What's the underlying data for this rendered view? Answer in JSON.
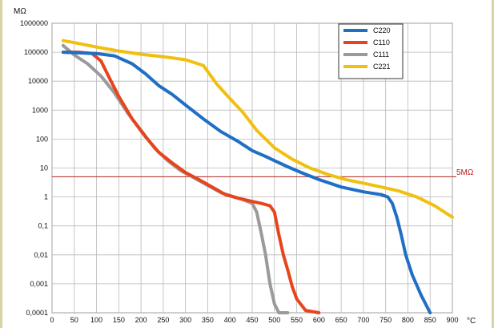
{
  "chart_data": {
    "type": "line",
    "y_unit": "MΩ",
    "x_unit": "°C",
    "y_scale": "log",
    "ylim": [
      0.0001,
      1000000
    ],
    "xlim": [
      0,
      900
    ],
    "grid": true,
    "legend_position": "top-right",
    "x_ticks": [
      "0",
      "50",
      "100",
      "150",
      "200",
      "250",
      "300",
      "350",
      "400",
      "450",
      "500",
      "550",
      "600",
      "650",
      "700",
      "750",
      "800",
      "850",
      "900"
    ],
    "y_ticks": [
      "1000000",
      "100000",
      "10000",
      "1000",
      "100",
      "10",
      "1",
      "0,1",
      "0,01",
      "0,001",
      "0,0001"
    ],
    "reference_line": {
      "value": 5,
      "label": "5MΩ",
      "color": "#b22222"
    },
    "series": [
      {
        "name": "C220",
        "color": "#1f6fc5",
        "x": [
          25,
          60,
          100,
          140,
          180,
          210,
          240,
          270,
          300,
          340,
          380,
          420,
          450,
          480,
          500,
          530,
          560,
          600,
          650,
          700,
          740,
          755,
          765,
          775,
          785,
          795,
          810,
          830,
          850
        ],
        "y": [
          100000,
          95000,
          90000,
          75000,
          40000,
          18000,
          7000,
          3500,
          1500,
          500,
          180,
          80,
          40,
          25,
          18,
          11,
          7,
          4,
          2.2,
          1.5,
          1.2,
          1,
          0.6,
          0.2,
          0.05,
          0.01,
          0.002,
          0.0004,
          0.0001
        ]
      },
      {
        "name": "C110",
        "color": "#e8441c",
        "x": [
          25,
          60,
          90,
          110,
          130,
          150,
          180,
          210,
          240,
          270,
          300,
          330,
          360,
          390,
          420,
          450,
          470,
          490,
          500,
          510,
          520,
          530,
          540,
          550,
          570,
          600
        ],
        "y": [
          100000,
          100000,
          90000,
          50000,
          12000,
          3000,
          500,
          120,
          35,
          15,
          7,
          4,
          2.2,
          1.2,
          0.9,
          0.7,
          0.6,
          0.5,
          0.3,
          0.05,
          0.01,
          0.003,
          0.0008,
          0.0003,
          0.00012,
          0.0001
        ]
      },
      {
        "name": "C111",
        "color": "#9a9a9a",
        "x": [
          25,
          50,
          80,
          110,
          140,
          170,
          200,
          230,
          260,
          290,
          320,
          350,
          380,
          410,
          430,
          450,
          460,
          470,
          480,
          490,
          500,
          510,
          530
        ],
        "y": [
          170000,
          80000,
          40000,
          15000,
          4000,
          800,
          200,
          50,
          18,
          8,
          4.5,
          2.5,
          1.4,
          1,
          0.8,
          0.6,
          0.3,
          0.06,
          0.01,
          0.001,
          0.0002,
          0.0001,
          0.0001
        ]
      },
      {
        "name": "C221",
        "color": "#f0c010",
        "x": [
          25,
          60,
          100,
          150,
          200,
          250,
          300,
          340,
          370,
          400,
          430,
          460,
          500,
          540,
          580,
          620,
          660,
          700,
          740,
          780,
          820,
          860,
          900
        ],
        "y": [
          250000,
          200000,
          150000,
          110000,
          85000,
          70000,
          55000,
          35000,
          8000,
          2500,
          800,
          200,
          50,
          20,
          10,
          6,
          4,
          3,
          2.2,
          1.6,
          1,
          0.5,
          0.2
        ]
      }
    ]
  }
}
